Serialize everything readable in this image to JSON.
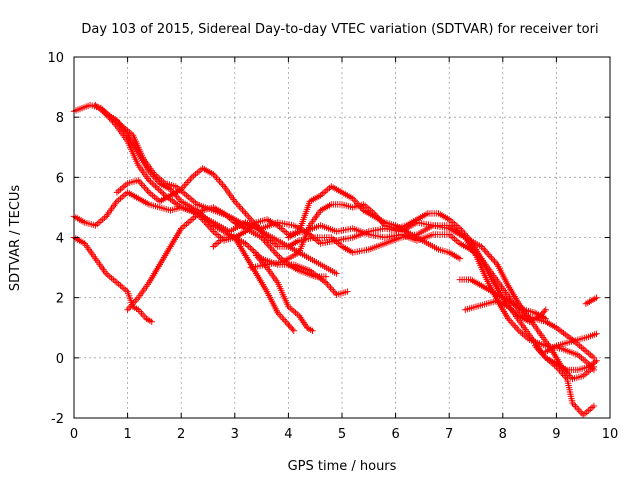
{
  "chart_data": {
    "type": "scatter",
    "title": "Day 103 of 2015, Sidereal Day-to-day VTEC variation (SDTVAR) for receiver tori",
    "xlabel": "GPS time / hours",
    "ylabel": "SDTVAR / TECUs",
    "xlim": [
      0,
      10
    ],
    "ylim": [
      -2,
      10
    ],
    "x_ticks": [
      "0",
      "1",
      "2",
      "3",
      "4",
      "5",
      "6",
      "7",
      "8",
      "9",
      "10"
    ],
    "y_ticks": [
      "-2",
      "0",
      "2",
      "4",
      "6",
      "8",
      "10"
    ],
    "grid": true,
    "marker": "+",
    "color": "#ff0000",
    "series": [
      {
        "name": "track-1",
        "points": [
          [
            0.0,
            8.2
          ],
          [
            0.3,
            8.4
          ],
          [
            0.5,
            8.3
          ],
          [
            0.8,
            7.7
          ],
          [
            1.0,
            7.2
          ],
          [
            1.2,
            6.4
          ],
          [
            1.4,
            5.9
          ],
          [
            1.7,
            5.4
          ],
          [
            2.0,
            5.0
          ],
          [
            2.3,
            4.8
          ],
          [
            2.6,
            4.5
          ],
          [
            2.9,
            4.2
          ],
          [
            3.2,
            4.5
          ],
          [
            3.5,
            4.3
          ],
          [
            3.8,
            4.5
          ],
          [
            4.1,
            4.4
          ],
          [
            4.4,
            4.1
          ],
          [
            4.6,
            3.8
          ],
          [
            4.9,
            3.9
          ],
          [
            5.2,
            4.0
          ],
          [
            5.5,
            4.2
          ],
          [
            5.8,
            4.3
          ],
          [
            6.1,
            4.2
          ],
          [
            6.4,
            4.5
          ],
          [
            6.7,
            4.4
          ],
          [
            7.0,
            4.4
          ],
          [
            7.3,
            4.0
          ],
          [
            7.5,
            3.4
          ],
          [
            7.7,
            2.6
          ],
          [
            7.9,
            1.9
          ],
          [
            8.1,
            1.3
          ],
          [
            8.3,
            0.9
          ],
          [
            8.5,
            0.6
          ],
          [
            8.8,
            0.4
          ],
          [
            9.1,
            0.3
          ],
          [
            9.4,
            0.1
          ],
          [
            9.6,
            -0.2
          ],
          [
            9.7,
            -0.4
          ]
        ]
      },
      {
        "name": "track-2",
        "points": [
          [
            0.4,
            8.4
          ],
          [
            0.6,
            8.1
          ],
          [
            0.8,
            7.9
          ],
          [
            1.0,
            7.4
          ],
          [
            1.2,
            6.8
          ],
          [
            1.4,
            6.2
          ],
          [
            1.6,
            5.8
          ],
          [
            1.8,
            5.6
          ],
          [
            2.0,
            5.2
          ],
          [
            2.3,
            4.9
          ],
          [
            2.6,
            4.4
          ],
          [
            2.9,
            4.1
          ],
          [
            3.2,
            3.8
          ],
          [
            3.5,
            3.3
          ],
          [
            3.8,
            3.1
          ],
          [
            4.1,
            3.1
          ],
          [
            4.4,
            2.9
          ],
          [
            4.7,
            2.5
          ],
          [
            4.9,
            2.1
          ],
          [
            5.1,
            2.2
          ]
        ]
      },
      {
        "name": "track-3",
        "points": [
          [
            0.5,
            8.3
          ],
          [
            0.7,
            8.0
          ],
          [
            0.9,
            7.7
          ],
          [
            1.1,
            7.4
          ],
          [
            1.3,
            6.6
          ],
          [
            1.5,
            6.1
          ],
          [
            1.7,
            5.8
          ],
          [
            1.9,
            5.7
          ],
          [
            2.1,
            5.4
          ],
          [
            2.3,
            5.1
          ],
          [
            2.6,
            4.9
          ],
          [
            2.9,
            4.7
          ],
          [
            3.1,
            4.5
          ],
          [
            3.4,
            4.3
          ],
          [
            3.7,
            4.0
          ],
          [
            4.0,
            3.7
          ],
          [
            4.3,
            3.4
          ],
          [
            4.6,
            3.1
          ],
          [
            4.9,
            2.8
          ]
        ]
      },
      {
        "name": "track-4",
        "points": [
          [
            0.0,
            4.7
          ],
          [
            0.2,
            4.5
          ],
          [
            0.4,
            4.4
          ],
          [
            0.6,
            4.7
          ],
          [
            0.8,
            5.2
          ],
          [
            1.0,
            5.5
          ],
          [
            1.2,
            5.3
          ],
          [
            1.4,
            5.1
          ],
          [
            1.6,
            5.0
          ],
          [
            1.8,
            4.9
          ],
          [
            2.0,
            5.0
          ],
          [
            2.2,
            4.9
          ],
          [
            2.4,
            4.6
          ],
          [
            2.6,
            4.2
          ],
          [
            2.8,
            3.9
          ],
          [
            3.0,
            4.0
          ],
          [
            3.2,
            4.2
          ],
          [
            3.4,
            4.5
          ],
          [
            3.6,
            4.6
          ],
          [
            3.8,
            4.4
          ],
          [
            4.0,
            4.1
          ],
          [
            4.3,
            4.2
          ],
          [
            4.6,
            4.4
          ],
          [
            4.9,
            4.2
          ],
          [
            5.2,
            4.3
          ],
          [
            5.5,
            4.1
          ],
          [
            5.8,
            4.0
          ],
          [
            6.1,
            4.1
          ],
          [
            6.4,
            3.9
          ],
          [
            6.7,
            4.1
          ],
          [
            7.0,
            4.1
          ],
          [
            7.2,
            3.8
          ],
          [
            7.4,
            3.6
          ],
          [
            7.6,
            3.3
          ],
          [
            7.8,
            2.8
          ],
          [
            8.0,
            2.3
          ],
          [
            8.2,
            1.8
          ],
          [
            8.4,
            1.4
          ],
          [
            8.6,
            1.3
          ],
          [
            8.8,
            1.2
          ],
          [
            9.0,
            1.0
          ],
          [
            9.3,
            0.6
          ],
          [
            9.5,
            0.3
          ],
          [
            9.7,
            0.0
          ]
        ]
      },
      {
        "name": "track-5",
        "points": [
          [
            0.0,
            4.0
          ],
          [
            0.2,
            3.8
          ],
          [
            0.4,
            3.3
          ],
          [
            0.6,
            2.8
          ],
          [
            0.8,
            2.5
          ],
          [
            1.0,
            2.2
          ],
          [
            1.1,
            1.7
          ],
          [
            1.2,
            1.6
          ],
          [
            1.35,
            1.3
          ],
          [
            1.45,
            1.2
          ]
        ]
      },
      {
        "name": "track-6",
        "points": [
          [
            1.0,
            1.6
          ],
          [
            1.2,
            2.0
          ],
          [
            1.4,
            2.5
          ],
          [
            1.6,
            3.1
          ],
          [
            1.8,
            3.7
          ],
          [
            2.0,
            4.3
          ],
          [
            2.2,
            4.6
          ],
          [
            2.4,
            4.9
          ],
          [
            2.6,
            5.0
          ],
          [
            2.8,
            4.8
          ],
          [
            3.0,
            4.5
          ],
          [
            3.2,
            4.3
          ],
          [
            3.5,
            4.0
          ],
          [
            3.8,
            3.4
          ],
          [
            4.0,
            3.1
          ],
          [
            4.2,
            2.9
          ],
          [
            4.5,
            2.7
          ],
          [
            4.7,
            2.7
          ]
        ]
      },
      {
        "name": "track-7",
        "points": [
          [
            0.8,
            5.5
          ],
          [
            1.0,
            5.8
          ],
          [
            1.2,
            5.9
          ],
          [
            1.4,
            5.5
          ],
          [
            1.6,
            5.2
          ],
          [
            1.8,
            5.4
          ],
          [
            2.0,
            5.6
          ],
          [
            2.2,
            6.0
          ],
          [
            2.4,
            6.3
          ],
          [
            2.6,
            6.1
          ],
          [
            2.8,
            5.7
          ],
          [
            3.0,
            5.2
          ],
          [
            3.2,
            4.8
          ],
          [
            3.4,
            4.4
          ],
          [
            3.6,
            4.0
          ],
          [
            3.8,
            3.7
          ],
          [
            4.0,
            3.7
          ],
          [
            4.2,
            3.9
          ],
          [
            4.5,
            4.0
          ],
          [
            4.8,
            4.0
          ],
          [
            5.0,
            3.7
          ],
          [
            5.2,
            3.5
          ],
          [
            5.5,
            3.6
          ],
          [
            5.8,
            3.8
          ],
          [
            6.1,
            4.0
          ],
          [
            6.4,
            4.1
          ],
          [
            6.7,
            4.4
          ],
          [
            7.0,
            4.3
          ],
          [
            7.3,
            4.0
          ],
          [
            7.6,
            3.7
          ],
          [
            7.9,
            3.1
          ],
          [
            8.1,
            2.4
          ],
          [
            8.3,
            1.8
          ],
          [
            8.5,
            1.3
          ],
          [
            8.7,
            0.8
          ],
          [
            8.9,
            0.3
          ],
          [
            9.1,
            -0.3
          ],
          [
            9.3,
            -0.7
          ],
          [
            9.5,
            -0.6
          ],
          [
            9.7,
            -0.3
          ]
        ]
      },
      {
        "name": "track-8",
        "points": [
          [
            2.6,
            3.7
          ],
          [
            2.8,
            4.0
          ],
          [
            3.0,
            4.0
          ],
          [
            3.2,
            3.4
          ],
          [
            3.4,
            2.8
          ],
          [
            3.6,
            2.2
          ],
          [
            3.8,
            1.5
          ],
          [
            4.0,
            1.1
          ],
          [
            4.1,
            0.9
          ]
        ]
      },
      {
        "name": "track-9",
        "points": [
          [
            3.4,
            3.4
          ],
          [
            3.6,
            3.0
          ],
          [
            3.8,
            2.5
          ],
          [
            4.0,
            1.7
          ],
          [
            4.2,
            1.4
          ],
          [
            4.35,
            1.0
          ],
          [
            4.45,
            0.9
          ]
        ]
      },
      {
        "name": "track-10",
        "points": [
          [
            3.3,
            3.0
          ],
          [
            3.6,
            3.1
          ],
          [
            3.9,
            3.2
          ],
          [
            4.2,
            3.5
          ],
          [
            4.4,
            4.4
          ],
          [
            4.6,
            4.9
          ],
          [
            4.8,
            5.1
          ],
          [
            5.0,
            5.1
          ],
          [
            5.2,
            5.0
          ],
          [
            5.4,
            5.1
          ],
          [
            5.6,
            4.8
          ],
          [
            5.8,
            4.4
          ],
          [
            6.0,
            4.3
          ],
          [
            6.2,
            4.4
          ],
          [
            6.4,
            4.6
          ],
          [
            6.6,
            4.8
          ],
          [
            6.8,
            4.8
          ],
          [
            7.0,
            4.6
          ],
          [
            7.2,
            4.3
          ],
          [
            7.4,
            3.9
          ],
          [
            7.6,
            3.3
          ],
          [
            7.8,
            2.6
          ],
          [
            8.0,
            2.0
          ],
          [
            8.2,
            1.5
          ],
          [
            8.4,
            1.0
          ],
          [
            8.6,
            0.5
          ],
          [
            8.8,
            0.0
          ],
          [
            9.0,
            -0.3
          ],
          [
            9.2,
            -0.7
          ],
          [
            9.3,
            -1.5
          ],
          [
            9.5,
            -1.9
          ],
          [
            9.7,
            -1.6
          ]
        ]
      },
      {
        "name": "track-11",
        "points": [
          [
            4.0,
            4.0
          ],
          [
            4.2,
            4.2
          ],
          [
            4.4,
            5.2
          ],
          [
            4.6,
            5.4
          ],
          [
            4.8,
            5.7
          ],
          [
            5.0,
            5.5
          ],
          [
            5.2,
            5.3
          ],
          [
            5.4,
            4.9
          ],
          [
            5.6,
            4.7
          ],
          [
            5.8,
            4.5
          ],
          [
            6.0,
            4.4
          ],
          [
            6.2,
            4.2
          ],
          [
            6.5,
            3.9
          ],
          [
            6.8,
            3.6
          ],
          [
            7.0,
            3.5
          ],
          [
            7.2,
            3.3
          ]
        ]
      },
      {
        "name": "track-12",
        "points": [
          [
            7.2,
            2.6
          ],
          [
            7.4,
            2.6
          ],
          [
            7.6,
            2.4
          ],
          [
            7.8,
            2.2
          ],
          [
            8.0,
            2.0
          ],
          [
            8.2,
            1.8
          ],
          [
            8.4,
            1.6
          ],
          [
            8.6,
            1.5
          ],
          [
            8.8,
            1.3
          ]
        ]
      },
      {
        "name": "track-13",
        "points": [
          [
            7.3,
            1.6
          ],
          [
            7.5,
            1.7
          ],
          [
            7.7,
            1.8
          ],
          [
            7.9,
            1.9
          ],
          [
            8.1,
            1.7
          ],
          [
            8.3,
            1.4
          ],
          [
            8.5,
            1.2
          ],
          [
            8.7,
            1.4
          ],
          [
            8.8,
            1.6
          ]
        ]
      },
      {
        "name": "track-14",
        "points": [
          [
            8.8,
            0.2
          ],
          [
            9.0,
            0.4
          ],
          [
            9.2,
            0.5
          ],
          [
            9.4,
            0.6
          ],
          [
            9.6,
            0.7
          ],
          [
            9.75,
            0.8
          ]
        ]
      },
      {
        "name": "track-15",
        "points": [
          [
            9.55,
            1.8
          ],
          [
            9.65,
            1.9
          ],
          [
            9.75,
            2.0
          ]
        ]
      },
      {
        "name": "track-16",
        "points": [
          [
            8.6,
            0.4
          ],
          [
            8.8,
            0.0
          ],
          [
            9.0,
            -0.2
          ],
          [
            9.2,
            -0.4
          ],
          [
            9.4,
            -0.4
          ],
          [
            9.6,
            -0.3
          ],
          [
            9.75,
            -0.1
          ]
        ]
      }
    ]
  }
}
